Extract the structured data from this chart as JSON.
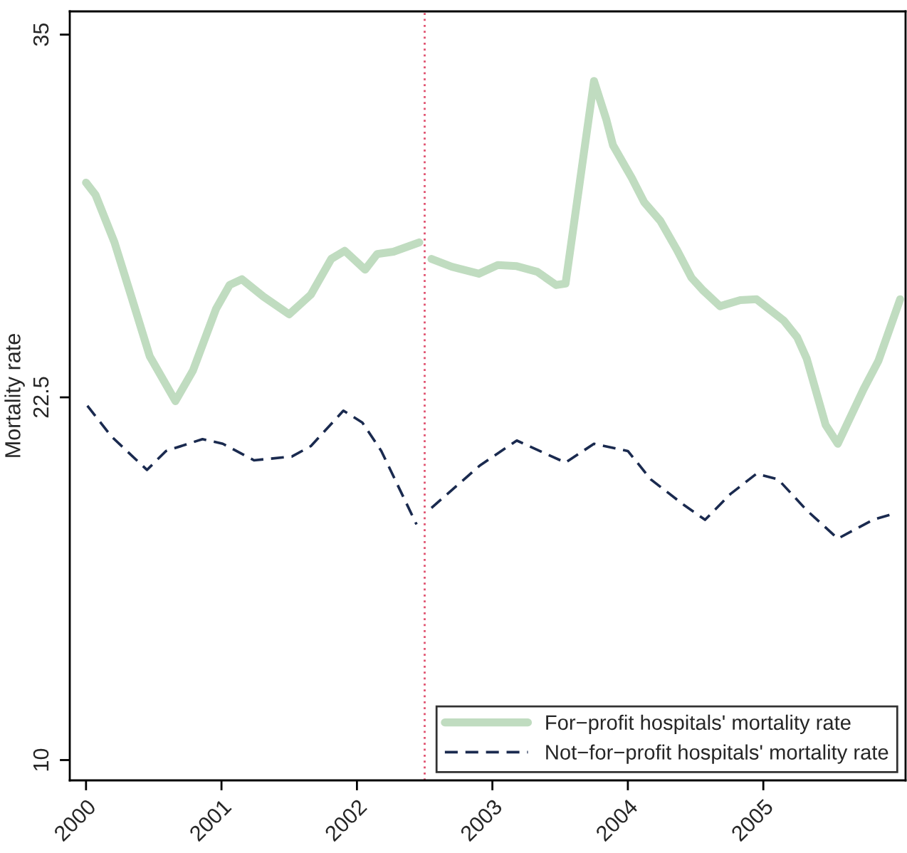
{
  "chart_data": {
    "type": "line",
    "ylabel": "Mortality rate",
    "xlim": [
      1999.88,
      2006.05
    ],
    "ylim": [
      9.3,
      35.8
    ],
    "xticks": [
      2000,
      2001,
      2002,
      2003,
      2004,
      2005
    ],
    "yticks": [
      10,
      22.5,
      35
    ],
    "grid": false,
    "legend": "bottom right",
    "ref_lines": [
      {
        "axis": "x",
        "value": 2002.5,
        "color": "#e0506e",
        "line_style": "dotted"
      }
    ],
    "series": [
      {
        "name": "For−profit hospitals' mortality rate",
        "color": "#c0dcc0",
        "line_style": "solid",
        "x": [
          2000.0,
          2000.07,
          2000.21,
          2000.33,
          2000.47,
          2000.66,
          2000.79,
          2000.96,
          2001.06,
          2001.15,
          2001.31,
          2001.5,
          2001.66,
          2001.81,
          2001.91,
          2002.06,
          2002.15,
          2002.27,
          2002.46,
          2002.5,
          2002.55,
          2002.7,
          2002.9,
          2003.04,
          2003.18,
          2003.33,
          2003.47,
          2003.54,
          2003.75,
          2003.84,
          2003.89,
          2004.03,
          2004.12,
          2004.24,
          2004.36,
          2004.47,
          2004.55,
          2004.68,
          2004.83,
          2004.95,
          2005.15,
          2005.25,
          2005.32,
          2005.46,
          2005.55,
          2005.74,
          2005.85,
          2006.01
        ],
        "values": [
          29.9,
          29.48,
          27.84,
          26.04,
          23.92,
          22.37,
          23.43,
          25.55,
          26.37,
          26.57,
          25.97,
          25.36,
          26.04,
          27.27,
          27.55,
          26.9,
          27.44,
          27.52,
          27.84,
          null,
          27.27,
          27.0,
          26.76,
          27.06,
          27.02,
          26.83,
          26.37,
          26.42,
          33.4,
          32.09,
          31.19,
          30.05,
          29.23,
          28.58,
          27.6,
          26.62,
          26.21,
          25.64,
          25.85,
          25.88,
          25.15,
          24.57,
          23.84,
          21.55,
          20.9,
          22.78,
          23.76,
          25.88
        ]
      },
      {
        "name": "Not−for−profit hospitals' mortality rate",
        "color": "#1a2a4f",
        "line_style": "dashed",
        "x": [
          2000.01,
          2000.19,
          2000.45,
          2000.59,
          2000.86,
          2001.01,
          2001.24,
          2001.52,
          2001.66,
          2001.9,
          2002.04,
          2002.18,
          2002.44,
          2002.5,
          2002.55,
          2002.91,
          2003.18,
          2003.54,
          2003.75,
          2004.0,
          2004.17,
          2004.42,
          2004.57,
          2004.76,
          2004.95,
          2005.11,
          2005.32,
          2005.55,
          2005.81,
          2005.97
        ],
        "values": [
          22.21,
          21.14,
          20.0,
          20.65,
          21.06,
          20.9,
          20.33,
          20.46,
          20.82,
          22.04,
          21.63,
          20.65,
          18.12,
          null,
          18.69,
          20.16,
          21.01,
          20.25,
          20.9,
          20.65,
          19.67,
          18.77,
          18.28,
          19.18,
          19.87,
          19.67,
          18.61,
          17.63,
          18.28,
          18.5
        ]
      }
    ]
  }
}
